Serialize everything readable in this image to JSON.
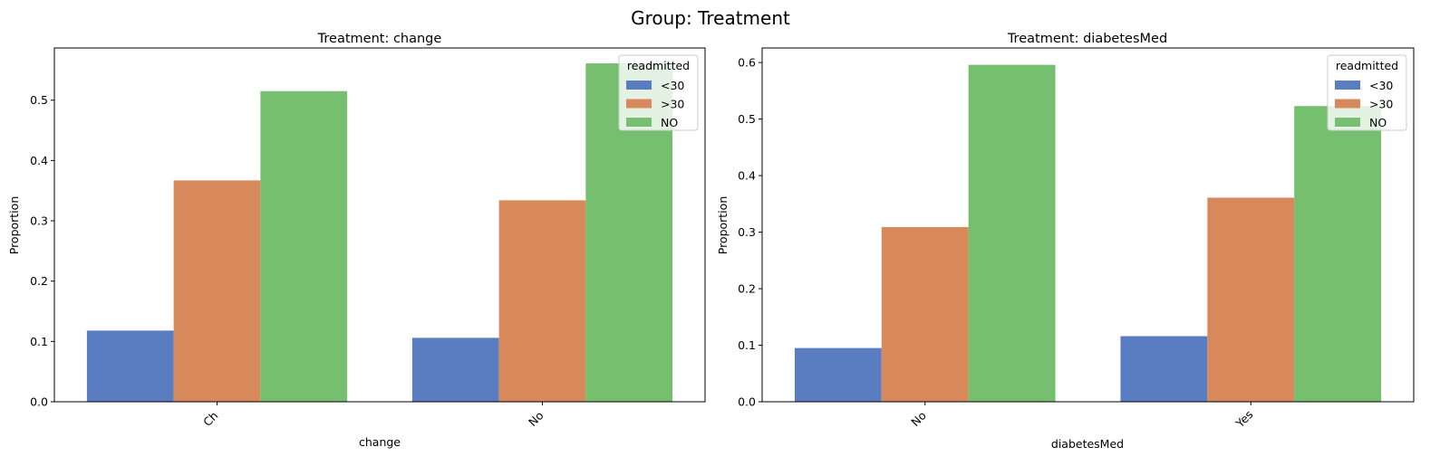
{
  "figure": {
    "suptitle": "Group: Treatment"
  },
  "chart_data": [
    {
      "type": "bar",
      "title": "Treatment: change",
      "xlabel": "change",
      "ylabel": "Proportion",
      "categories": [
        "Ch",
        "No"
      ],
      "series": [
        {
          "name": "<30",
          "color": "#5a7dc2",
          "values": [
            0.118,
            0.106
          ]
        },
        {
          "name": ">30",
          "color": "#d8895c",
          "values": [
            0.367,
            0.334
          ]
        },
        {
          "name": "NO",
          "color": "#75bf6e",
          "values": [
            0.515,
            0.561
          ]
        }
      ],
      "ylim": [
        0,
        0.5866
      ],
      "yticks": [
        "0.0",
        "0.1",
        "0.2",
        "0.3",
        "0.4",
        "0.5"
      ],
      "ytick_values": [
        0,
        0.1,
        0.2,
        0.3,
        0.4,
        0.5
      ],
      "legend": {
        "title": "readmitted",
        "placement": "top-right"
      },
      "grid": false
    },
    {
      "type": "bar",
      "title": "Treatment: diabetesMed",
      "xlabel": "diabetesMed",
      "ylabel": "Proportion",
      "categories": [
        "No",
        "Yes"
      ],
      "series": [
        {
          "name": "<30",
          "color": "#5a7dc2",
          "values": [
            0.095,
            0.116
          ]
        },
        {
          "name": ">30",
          "color": "#d8895c",
          "values": [
            0.309,
            0.361
          ]
        },
        {
          "name": "NO",
          "color": "#75bf6e",
          "values": [
            0.596,
            0.523
          ]
        }
      ],
      "ylim": [
        0,
        0.6258
      ],
      "yticks": [
        "0.0",
        "0.1",
        "0.2",
        "0.3",
        "0.4",
        "0.5",
        "0.6"
      ],
      "ytick_values": [
        0,
        0.1,
        0.2,
        0.3,
        0.4,
        0.5,
        0.6
      ],
      "legend": {
        "title": "readmitted",
        "placement": "top-right"
      },
      "grid": false
    }
  ]
}
